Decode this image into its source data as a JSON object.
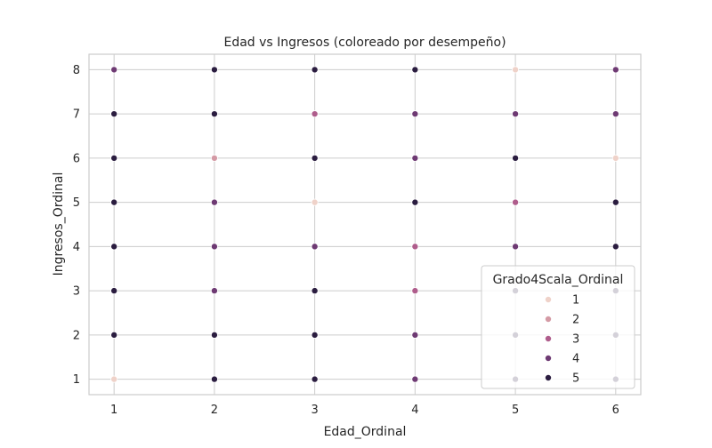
{
  "chart_data": {
    "type": "scatter",
    "title": "Edad vs Ingresos (coloreado por desempeño)",
    "xlabel": "Edad_Ordinal",
    "ylabel": "Ingresos_Ordinal",
    "xlim": [
      0.75,
      6.25
    ],
    "ylim": [
      0.65,
      8.35
    ],
    "xticks": [
      1,
      2,
      3,
      4,
      5,
      6
    ],
    "yticks": [
      1,
      2,
      3,
      4,
      5,
      6,
      7,
      8
    ],
    "grid": true,
    "legend": {
      "title": "Grado4Scala_Ordinal",
      "placement": "bottom-right",
      "entries": [
        {
          "label": "1",
          "color": "#efd2c9"
        },
        {
          "label": "2",
          "color": "#d49aa5"
        },
        {
          "label": "3",
          "color": "#af5d8c"
        },
        {
          "label": "4",
          "color": "#6e3a73"
        },
        {
          "label": "5",
          "color": "#2b1d40"
        }
      ]
    },
    "points": [
      {
        "x": 1,
        "y": 8,
        "grade": 4
      },
      {
        "x": 1,
        "y": 7,
        "grade": 5
      },
      {
        "x": 1,
        "y": 6,
        "grade": 5
      },
      {
        "x": 1,
        "y": 5,
        "grade": 5
      },
      {
        "x": 1,
        "y": 4,
        "grade": 5
      },
      {
        "x": 1,
        "y": 3,
        "grade": 5
      },
      {
        "x": 1,
        "y": 2,
        "grade": 5
      },
      {
        "x": 1,
        "y": 1,
        "grade": 1
      },
      {
        "x": 2,
        "y": 8,
        "grade": 5
      },
      {
        "x": 2,
        "y": 7,
        "grade": 5
      },
      {
        "x": 2,
        "y": 6,
        "grade": 2
      },
      {
        "x": 2,
        "y": 5,
        "grade": 4
      },
      {
        "x": 2,
        "y": 4,
        "grade": 4
      },
      {
        "x": 2,
        "y": 3,
        "grade": 4
      },
      {
        "x": 2,
        "y": 2,
        "grade": 5
      },
      {
        "x": 2,
        "y": 1,
        "grade": 5
      },
      {
        "x": 3,
        "y": 8,
        "grade": 5
      },
      {
        "x": 3,
        "y": 7,
        "grade": 3
      },
      {
        "x": 3,
        "y": 6,
        "grade": 5
      },
      {
        "x": 3,
        "y": 5,
        "grade": 1
      },
      {
        "x": 3,
        "y": 4,
        "grade": 4
      },
      {
        "x": 3,
        "y": 3,
        "grade": 5
      },
      {
        "x": 3,
        "y": 2,
        "grade": 5
      },
      {
        "x": 3,
        "y": 1,
        "grade": 5
      },
      {
        "x": 4,
        "y": 8,
        "grade": 5
      },
      {
        "x": 4,
        "y": 7,
        "grade": 4
      },
      {
        "x": 4,
        "y": 6,
        "grade": 4
      },
      {
        "x": 4,
        "y": 5,
        "grade": 5
      },
      {
        "x": 4,
        "y": 4,
        "grade": 3
      },
      {
        "x": 4,
        "y": 3,
        "grade": 3
      },
      {
        "x": 4,
        "y": 2,
        "grade": 4
      },
      {
        "x": 4,
        "y": 1,
        "grade": 4
      },
      {
        "x": 5,
        "y": 8,
        "grade": 1
      },
      {
        "x": 5,
        "y": 7,
        "grade": 4
      },
      {
        "x": 5,
        "y": 6,
        "grade": 5
      },
      {
        "x": 5,
        "y": 5,
        "grade": 3
      },
      {
        "x": 5,
        "y": 4,
        "grade": 4
      },
      {
        "x": 5,
        "y": 3,
        "grade": 5
      },
      {
        "x": 5,
        "y": 2,
        "grade": 5
      },
      {
        "x": 5,
        "y": 1,
        "grade": 5
      },
      {
        "x": 6,
        "y": 8,
        "grade": 4
      },
      {
        "x": 6,
        "y": 7,
        "grade": 4
      },
      {
        "x": 6,
        "y": 6,
        "grade": 1
      },
      {
        "x": 6,
        "y": 5,
        "grade": 5
      },
      {
        "x": 6,
        "y": 4,
        "grade": 5
      },
      {
        "x": 6,
        "y": 3,
        "grade": 5
      },
      {
        "x": 6,
        "y": 2,
        "grade": 5
      },
      {
        "x": 6,
        "y": 1,
        "grade": 5
      }
    ]
  }
}
